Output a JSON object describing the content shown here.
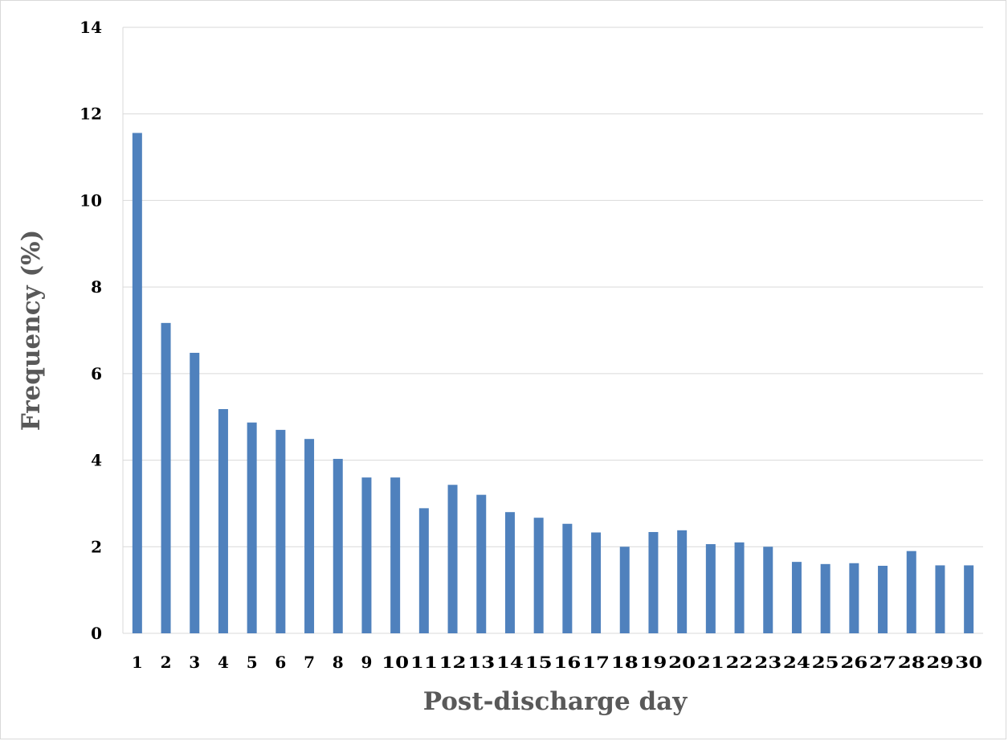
{
  "chart_data": {
    "type": "bar",
    "title": "",
    "xlabel": "Post-discharge day",
    "ylabel": "Frequency (%)",
    "ylim": [
      0,
      14
    ],
    "yticks": [
      0,
      2,
      4,
      6,
      8,
      10,
      12,
      14
    ],
    "grid": true,
    "legend": "none",
    "bar_color": "#4f81bd",
    "grid_color": "#d9d9d9",
    "categories": [
      "1",
      "2",
      "3",
      "4",
      "5",
      "6",
      "7",
      "8",
      "9",
      "10",
      "11",
      "12",
      "13",
      "14",
      "15",
      "16",
      "17",
      "18",
      "19",
      "20",
      "21",
      "22",
      "23",
      "24",
      "25",
      "26",
      "27",
      "28",
      "29",
      "30"
    ],
    "values": [
      11.56,
      7.17,
      6.48,
      5.18,
      4.87,
      4.7,
      4.49,
      4.03,
      3.6,
      3.6,
      2.89,
      3.43,
      3.2,
      2.8,
      2.67,
      2.53,
      2.33,
      2.0,
      2.34,
      2.38,
      2.06,
      2.1,
      2.0,
      1.65,
      1.6,
      1.62,
      1.56,
      1.9,
      1.57,
      1.57
    ]
  }
}
